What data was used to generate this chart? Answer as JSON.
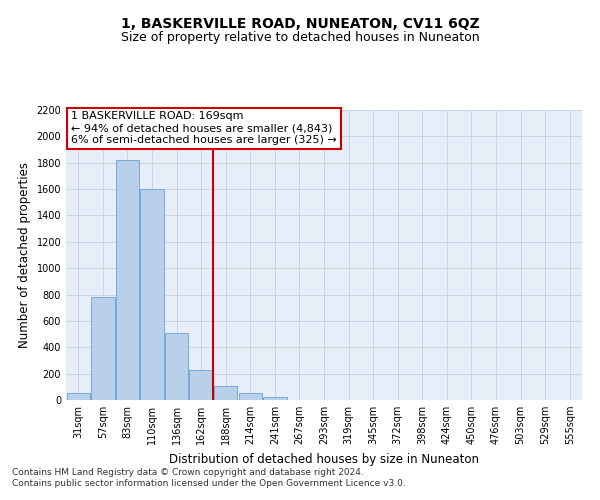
{
  "title": "1, BASKERVILLE ROAD, NUNEATON, CV11 6QZ",
  "subtitle": "Size of property relative to detached houses in Nuneaton",
  "xlabel": "Distribution of detached houses by size in Nuneaton",
  "ylabel": "Number of detached properties",
  "categories": [
    "31sqm",
    "57sqm",
    "83sqm",
    "110sqm",
    "136sqm",
    "162sqm",
    "188sqm",
    "214sqm",
    "241sqm",
    "267sqm",
    "293sqm",
    "319sqm",
    "345sqm",
    "372sqm",
    "398sqm",
    "424sqm",
    "450sqm",
    "476sqm",
    "503sqm",
    "529sqm",
    "555sqm"
  ],
  "values": [
    50,
    780,
    1820,
    1600,
    510,
    230,
    110,
    55,
    25,
    0,
    0,
    0,
    0,
    0,
    0,
    0,
    0,
    0,
    0,
    0,
    0
  ],
  "bar_color": "#b8d0ea",
  "bar_edge_color": "#6a9fd8",
  "property_line_x": 5.5,
  "annotation_line1": "1 BASKERVILLE ROAD: 169sqm",
  "annotation_line2": "← 94% of detached houses are smaller (4,843)",
  "annotation_line3": "6% of semi-detached houses are larger (325) →",
  "annotation_box_color": "#ffffff",
  "annotation_box_edge": "#cc0000",
  "vline_color": "#cc0000",
  "grid_color": "#c8d4e8",
  "background_color": "#e8eef8",
  "ylim": [
    0,
    2200
  ],
  "yticks": [
    0,
    200,
    400,
    600,
    800,
    1000,
    1200,
    1400,
    1600,
    1800,
    2000,
    2200
  ],
  "footnote": "Contains HM Land Registry data © Crown copyright and database right 2024.\nContains public sector information licensed under the Open Government Licence v3.0.",
  "title_fontsize": 10,
  "subtitle_fontsize": 9,
  "xlabel_fontsize": 8.5,
  "ylabel_fontsize": 8.5,
  "tick_fontsize": 7,
  "annotation_fontsize": 8,
  "footnote_fontsize": 6.5
}
